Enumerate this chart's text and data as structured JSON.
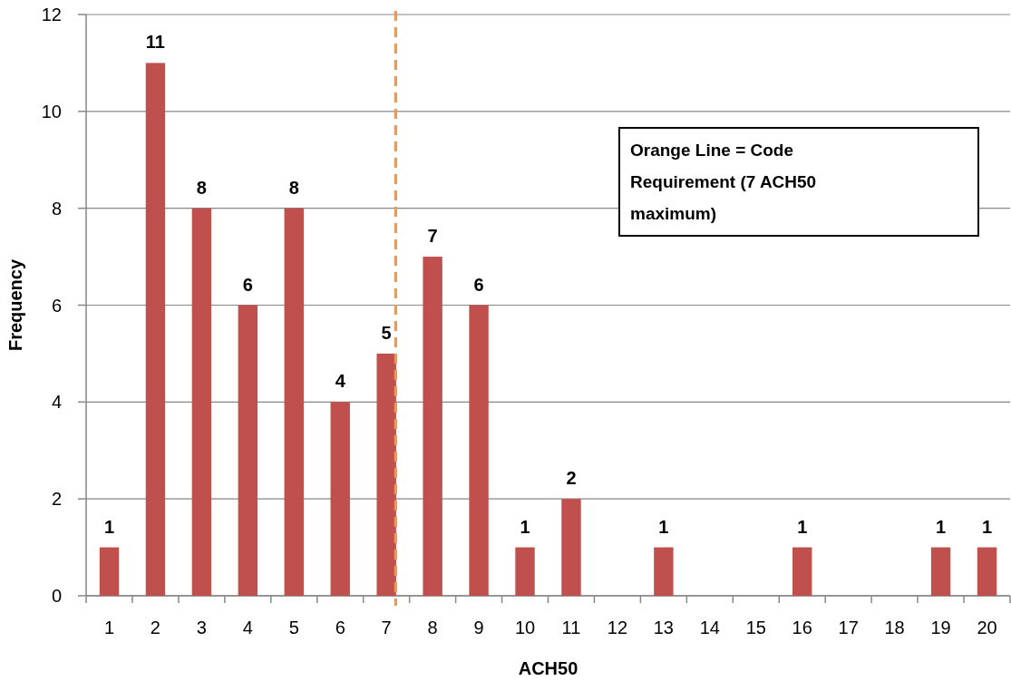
{
  "chart_data": {
    "type": "bar",
    "xlabel": "ACH50",
    "ylabel": "Frequency",
    "x": [
      1,
      2,
      3,
      4,
      5,
      6,
      7,
      8,
      9,
      10,
      11,
      13,
      16,
      19,
      20
    ],
    "values": [
      1,
      11,
      8,
      6,
      8,
      4,
      5,
      7,
      6,
      1,
      2,
      1,
      1,
      1,
      1
    ],
    "color": "#c0504d",
    "xlim": [
      0.5,
      20.5
    ],
    "xticks": [
      {
        "value": 0.5,
        "label": null
      },
      1,
      {
        "value": 1.5,
        "label": null
      },
      2,
      {
        "value": 2.5,
        "label": null
      },
      3,
      {
        "value": 3.5,
        "label": null
      },
      4,
      {
        "value": 4.5,
        "label": null
      },
      5,
      {
        "value": 5.5,
        "label": null
      },
      6,
      {
        "value": 6.5,
        "label": null
      },
      7,
      {
        "value": 7.5,
        "label": null
      },
      8,
      {
        "value": 8.5,
        "label": null
      },
      9,
      {
        "value": 9.5,
        "label": null
      },
      10,
      {
        "value": 10.5,
        "label": null
      },
      11,
      {
        "value": 11.5,
        "label": null
      },
      12,
      {
        "value": 12.5,
        "label": null
      },
      13,
      {
        "value": 13.5,
        "label": null
      },
      14,
      {
        "value": 14.5,
        "label": null
      },
      15,
      {
        "value": 15.5,
        "label": null
      },
      16,
      {
        "value": 16.5,
        "label": null
      },
      17,
      {
        "value": 17.5,
        "label": null
      },
      18,
      {
        "value": 18.5,
        "label": null
      },
      19,
      {
        "value": 19.5,
        "label": null
      },
      20,
      {
        "value": 20.5,
        "label": null
      }
    ],
    "ylim": [
      0,
      12
    ],
    "yticks": [
      0,
      2,
      4,
      6,
      8,
      10,
      12
    ],
    "grid": "y",
    "data_labels": true,
    "ref_lines": [
      {
        "axis": "x",
        "value": 7.2,
        "color": "#f79646",
        "line_style": "dashed"
      }
    ],
    "annotations": [
      "Orange Line = Code Requirement (7 ACH50 maximum)"
    ]
  }
}
